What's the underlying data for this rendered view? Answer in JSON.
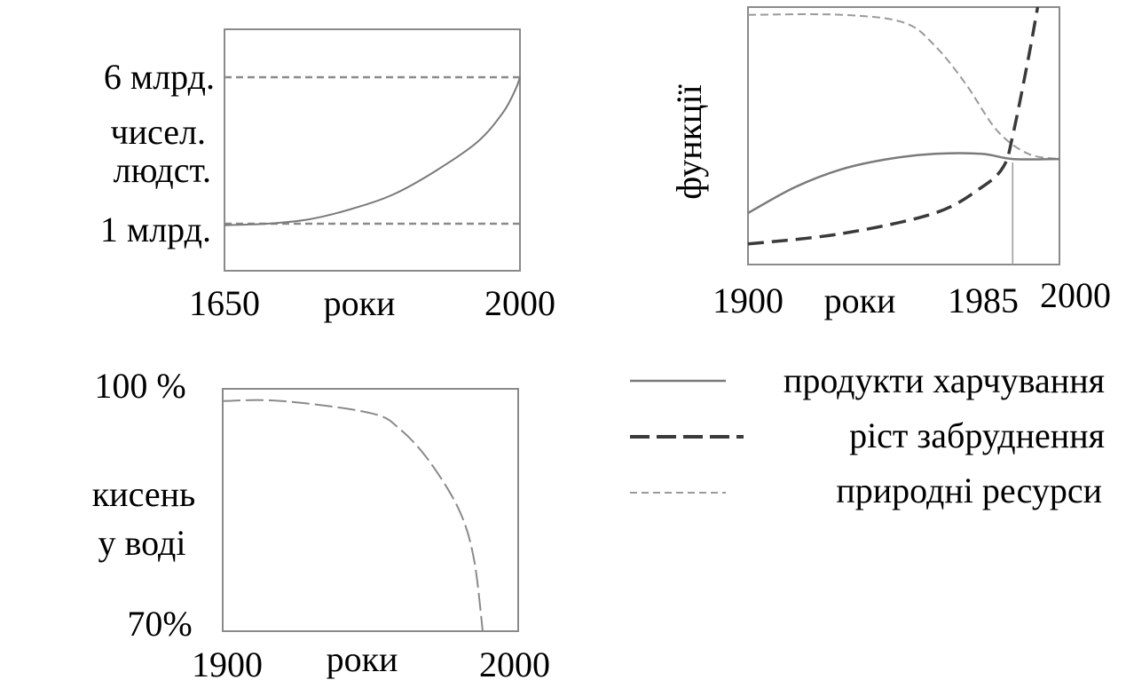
{
  "chart_data": [
    {
      "id": "population",
      "type": "line",
      "xlabel": "роки",
      "x_ticks": [
        "1650",
        "2000"
      ],
      "xlim": [
        1650,
        2000
      ],
      "ylabel_lines": [
        "чисел.",
        "людст."
      ],
      "ylim_units": "млрд.",
      "y_ref_lines": [
        {
          "value": 6,
          "label": "6 млрд."
        },
        {
          "value": 1,
          "label": "1 млрд."
        }
      ],
      "series": [
        {
          "style": "solid",
          "points": [
            [
              1650,
              0.95
            ],
            [
              1700,
              1.0
            ],
            [
              1750,
              1.15
            ],
            [
              1800,
              1.5
            ],
            [
              1850,
              2.0
            ],
            [
              1900,
              2.8
            ],
            [
              1950,
              3.8
            ],
            [
              1980,
              4.8
            ],
            [
              1995,
              5.6
            ],
            [
              2000,
              6.0
            ]
          ]
        }
      ]
    },
    {
      "id": "functions",
      "type": "line",
      "xlabel": "роки",
      "ylabel": "функції",
      "x_ticks": [
        "1900",
        "1985",
        "2000"
      ],
      "xlim": [
        1900,
        2000
      ],
      "ylim": [
        0,
        1
      ],
      "marker_x": 1985,
      "series": [
        {
          "legend_ref": 0,
          "style": "solid",
          "points": [
            [
              1900,
              0.2
            ],
            [
              1915,
              0.3
            ],
            [
              1930,
              0.37
            ],
            [
              1945,
              0.41
            ],
            [
              1960,
              0.43
            ],
            [
              1975,
              0.43
            ],
            [
              1985,
              0.41
            ],
            [
              2000,
              0.41
            ]
          ]
        },
        {
          "legend_ref": 1,
          "style": "dashed",
          "points": [
            [
              1900,
              0.08
            ],
            [
              1930,
              0.12
            ],
            [
              1960,
              0.2
            ],
            [
              1975,
              0.3
            ],
            [
              1982,
              0.38
            ],
            [
              1985,
              0.5
            ],
            [
              1990,
              0.8
            ],
            [
              1993,
              1.0
            ]
          ]
        },
        {
          "legend_ref": 2,
          "style": "dotted",
          "points": [
            [
              1900,
              0.97
            ],
            [
              1930,
              0.97
            ],
            [
              1950,
              0.94
            ],
            [
              1960,
              0.85
            ],
            [
              1970,
              0.7
            ],
            [
              1980,
              0.52
            ],
            [
              1990,
              0.43
            ],
            [
              2000,
              0.41
            ]
          ]
        }
      ]
    },
    {
      "id": "oxygen",
      "type": "line",
      "xlabel": "роки",
      "x_ticks": [
        "1900",
        "2000"
      ],
      "xlim": [
        1900,
        2000
      ],
      "ylim": [
        70,
        100
      ],
      "y_ticks": [
        "100 %",
        "70%"
      ],
      "ylabel_lines": [
        "кисень",
        "у воді"
      ],
      "series": [
        {
          "style": "long-dash",
          "points": [
            [
              1900,
              98.5
            ],
            [
              1920,
              98.5
            ],
            [
              1950,
              97.0
            ],
            [
              1960,
              95.0
            ],
            [
              1970,
              91.0
            ],
            [
              1980,
              85.0
            ],
            [
              1985,
              79.0
            ],
            [
              1988,
              70.0
            ]
          ]
        }
      ]
    }
  ],
  "legend": [
    {
      "label": "продукти харчування",
      "style": "solid"
    },
    {
      "label": "ріст забруднення",
      "style": "dashed"
    },
    {
      "label": "природні ресурси",
      "style": "dotted"
    }
  ],
  "colors": {
    "frame": "#8a8a8a",
    "solid_line": "#7a7a7a",
    "dashed_line": "#3a3a3a",
    "dotted_line": "#9a9a9a",
    "ref_line": "#8a8a8a"
  }
}
